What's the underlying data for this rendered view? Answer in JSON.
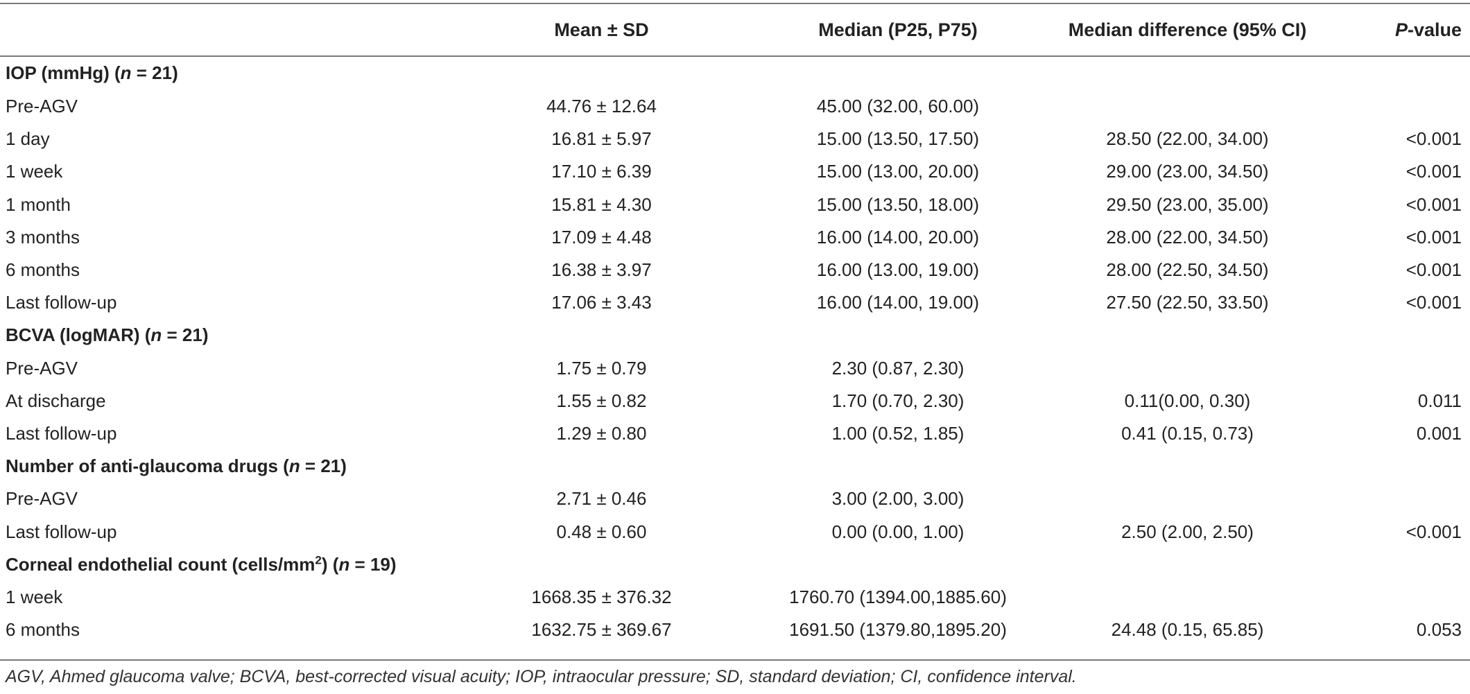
{
  "headers": {
    "mean_sd": "Mean ± SD",
    "median": "Median (P25, P75)",
    "median_diff": "Median difference (95% CI)",
    "p_italic": "P",
    "p_rest": "-value"
  },
  "sections": [
    {
      "title_pre": "IOP (mmHg) (",
      "n_var": "n",
      "title_post": " = 21)",
      "sup": "",
      "title_tail": "",
      "rows": [
        {
          "label": "Pre-AGV",
          "mean": "44.76 ± 12.64",
          "median": "45.00 (32.00, 60.00)",
          "diff": "",
          "p": ""
        },
        {
          "label": "1 day",
          "mean": "16.81 ± 5.97",
          "median": "15.00 (13.50, 17.50)",
          "diff": "28.50 (22.00, 34.00)",
          "p": "<0.001"
        },
        {
          "label": "1 week",
          "mean": "17.10 ± 6.39",
          "median": "15.00 (13.00, 20.00)",
          "diff": "29.00 (23.00, 34.50)",
          "p": "<0.001"
        },
        {
          "label": "1 month",
          "mean": "15.81 ± 4.30",
          "median": "15.00 (13.50, 18.00)",
          "diff": "29.50 (23.00, 35.00)",
          "p": "<0.001"
        },
        {
          "label": "3 months",
          "mean": "17.09 ± 4.48",
          "median": "16.00 (14.00, 20.00)",
          "diff": "28.00 (22.00, 34.50)",
          "p": "<0.001"
        },
        {
          "label": "6 months",
          "mean": "16.38 ± 3.97",
          "median": "16.00 (13.00, 19.00)",
          "diff": "28.00 (22.50, 34.50)",
          "p": "<0.001"
        },
        {
          "label": "Last follow-up",
          "mean": "17.06 ± 3.43",
          "median": "16.00 (14.00, 19.00)",
          "diff": "27.50 (22.50, 33.50)",
          "p": "<0.001"
        }
      ]
    },
    {
      "title_pre": "BCVA (logMAR) (",
      "n_var": "n",
      "title_post": " = 21)",
      "rows": [
        {
          "label": "Pre-AGV",
          "mean": "1.75 ± 0.79",
          "median": "2.30 (0.87, 2.30)",
          "diff": "",
          "p": ""
        },
        {
          "label": "At discharge",
          "mean": "1.55 ± 0.82",
          "median": "1.70 (0.70, 2.30)",
          "diff": "0.11(0.00, 0.30)",
          "p": "0.011"
        },
        {
          "label": "Last follow-up",
          "mean": "1.29 ± 0.80",
          "median": "1.00 (0.52, 1.85)",
          "diff": "0.41 (0.15, 0.73)",
          "p": "0.001"
        }
      ]
    },
    {
      "title_pre": "Number of anti-glaucoma drugs (",
      "n_var": "n",
      "title_post": " = 21)",
      "rows": [
        {
          "label": "Pre-AGV",
          "mean": "2.71 ± 0.46",
          "median": "3.00 (2.00, 3.00)",
          "diff": "",
          "p": ""
        },
        {
          "label": "Last follow-up",
          "mean": "0.48 ± 0.60",
          "median": "0.00 (0.00, 1.00)",
          "diff": "2.50 (2.00, 2.50)",
          "p": "<0.001"
        }
      ]
    },
    {
      "title_pre": "Corneal endothelial count (cells/mm",
      "sup": "2",
      "title_mid": ") (",
      "n_var": "n",
      "title_post": " = 19)",
      "rows": [
        {
          "label": "1 week",
          "mean": "1668.35 ± 376.32",
          "median": "1760.70 (1394.00,1885.60)",
          "diff": "",
          "p": ""
        },
        {
          "label": "6 months",
          "mean": "1632.75 ± 369.67",
          "median": "1691.50 (1379.80,1895.20)",
          "diff": "24.48 (0.15, 65.85)",
          "p": "0.053"
        }
      ]
    }
  ],
  "caption": "AGV, Ahmed glaucoma valve; BCVA, best-corrected visual acuity; IOP, intraocular pressure; SD, standard deviation; CI, confidence interval."
}
